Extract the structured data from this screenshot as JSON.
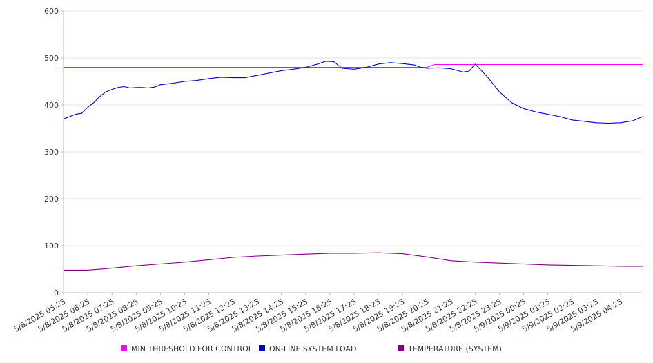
{
  "chart_data": {
    "type": "line",
    "ylim": [
      0,
      600
    ],
    "y_ticks": [
      "0",
      "100",
      "200",
      "300",
      "400",
      "500",
      "600"
    ],
    "x_ticks": [
      "5/8/2025 05:25",
      "5/8/2025 06:25",
      "5/8/2025 07:25",
      "5/8/2025 08:25",
      "5/8/2025 09:25",
      "5/8/2025 10:25",
      "5/8/2025 11:25",
      "5/8/2025 12:25",
      "5/8/2025 13:25",
      "5/8/2025 14:25",
      "5/8/2025 15:25",
      "5/8/2025 16:25",
      "5/8/2025 17:25",
      "5/8/2025 18:25",
      "5/8/2025 19:25",
      "5/8/2025 20:25",
      "5/8/2025 21:25",
      "5/8/2025 22:25",
      "5/8/2025 23:25",
      "5/9/2025 00:25",
      "5/9/2025 01:25",
      "5/9/2025 02:25",
      "5/9/2025 03:25",
      "5/9/2025 04:25"
    ],
    "grid": true,
    "legend_position": "bottom",
    "series": [
      {
        "name": "MIN THRESHOLD FOR CONTROL",
        "color": "#ff00ff",
        "points": [
          [
            "5/8/2025 05:25",
            480
          ],
          [
            "5/8/2025 20:25",
            480
          ],
          [
            "5/8/2025 20:45",
            486
          ],
          [
            "5/9/2025 05:20",
            486
          ]
        ]
      },
      {
        "name": "ON-LINE SYSTEM LOAD",
        "color": "#0000cc",
        "points": [
          [
            "5/8/2025 05:25",
            370
          ],
          [
            "5/8/2025 05:40",
            375
          ],
          [
            "5/8/2025 05:55",
            380
          ],
          [
            "5/8/2025 06:10",
            382
          ],
          [
            "5/8/2025 06:25",
            395
          ],
          [
            "5/8/2025 06:40",
            405
          ],
          [
            "5/8/2025 06:55",
            418
          ],
          [
            "5/8/2025 07:10",
            428
          ],
          [
            "5/8/2025 07:25",
            433
          ],
          [
            "5/8/2025 07:40",
            437
          ],
          [
            "5/8/2025 07:55",
            439
          ],
          [
            "5/8/2025 08:10",
            436
          ],
          [
            "5/8/2025 08:25",
            437
          ],
          [
            "5/8/2025 08:40",
            437
          ],
          [
            "5/8/2025 08:55",
            436
          ],
          [
            "5/8/2025 09:10",
            438
          ],
          [
            "5/8/2025 09:25",
            443
          ],
          [
            "5/8/2025 09:55",
            446
          ],
          [
            "5/8/2025 10:25",
            450
          ],
          [
            "5/8/2025 10:55",
            452
          ],
          [
            "5/8/2025 11:25",
            456
          ],
          [
            "5/8/2025 11:55",
            459
          ],
          [
            "5/8/2025 12:25",
            458
          ],
          [
            "5/8/2025 12:55",
            458
          ],
          [
            "5/8/2025 13:25",
            463
          ],
          [
            "5/8/2025 13:55",
            468
          ],
          [
            "5/8/2025 14:25",
            473
          ],
          [
            "5/8/2025 14:55",
            476
          ],
          [
            "5/8/2025 15:25",
            480
          ],
          [
            "5/8/2025 15:55",
            487
          ],
          [
            "5/8/2025 16:15",
            493
          ],
          [
            "5/8/2025 16:35",
            492
          ],
          [
            "5/8/2025 16:55",
            478
          ],
          [
            "5/8/2025 17:25",
            476
          ],
          [
            "5/8/2025 17:55",
            480
          ],
          [
            "5/8/2025 18:25",
            487
          ],
          [
            "5/8/2025 18:55",
            490
          ],
          [
            "5/8/2025 19:25",
            488
          ],
          [
            "5/8/2025 19:55",
            485
          ],
          [
            "5/8/2025 20:10",
            480
          ],
          [
            "5/8/2025 20:25",
            478
          ],
          [
            "5/8/2025 20:55",
            479
          ],
          [
            "5/8/2025 21:25",
            477
          ],
          [
            "5/8/2025 21:55",
            470
          ],
          [
            "5/8/2025 22:10",
            472
          ],
          [
            "5/8/2025 22:25",
            487
          ],
          [
            "5/8/2025 22:55",
            460
          ],
          [
            "5/8/2025 23:25",
            428
          ],
          [
            "5/8/2025 23:55",
            405
          ],
          [
            "5/9/2025 00:25",
            392
          ],
          [
            "5/9/2025 00:55",
            385
          ],
          [
            "5/9/2025 01:25",
            380
          ],
          [
            "5/9/2025 01:55",
            375
          ],
          [
            "5/9/2025 02:25",
            368
          ],
          [
            "5/9/2025 02:55",
            365
          ],
          [
            "5/9/2025 03:25",
            362
          ],
          [
            "5/9/2025 03:55",
            361
          ],
          [
            "5/9/2025 04:25",
            362
          ],
          [
            "5/9/2025 04:55",
            366
          ],
          [
            "5/9/2025 05:20",
            375
          ]
        ]
      },
      {
        "name": "TEMPERATURE (SYSTEM)",
        "color": "#800080",
        "points": [
          [
            "5/8/2025 05:25",
            48
          ],
          [
            "5/8/2025 06:25",
            48
          ],
          [
            "5/8/2025 07:25",
            52
          ],
          [
            "5/8/2025 08:25",
            57
          ],
          [
            "5/8/2025 09:25",
            61
          ],
          [
            "5/8/2025 10:25",
            65
          ],
          [
            "5/8/2025 11:25",
            70
          ],
          [
            "5/8/2025 12:25",
            75
          ],
          [
            "5/8/2025 13:25",
            78
          ],
          [
            "5/8/2025 14:25",
            80
          ],
          [
            "5/8/2025 15:25",
            82
          ],
          [
            "5/8/2025 16:25",
            84
          ],
          [
            "5/8/2025 17:25",
            84
          ],
          [
            "5/8/2025 18:25",
            85
          ],
          [
            "5/8/2025 19:25",
            83
          ],
          [
            "5/8/2025 20:25",
            76
          ],
          [
            "5/8/2025 21:25",
            68
          ],
          [
            "5/8/2025 22:25",
            65
          ],
          [
            "5/8/2025 23:25",
            63
          ],
          [
            "5/9/2025 00:25",
            61
          ],
          [
            "5/9/2025 01:25",
            59
          ],
          [
            "5/9/2025 02:25",
            58
          ],
          [
            "5/9/2025 03:25",
            57
          ],
          [
            "5/9/2025 04:25",
            56
          ],
          [
            "5/9/2025 05:20",
            56
          ]
        ]
      }
    ]
  }
}
